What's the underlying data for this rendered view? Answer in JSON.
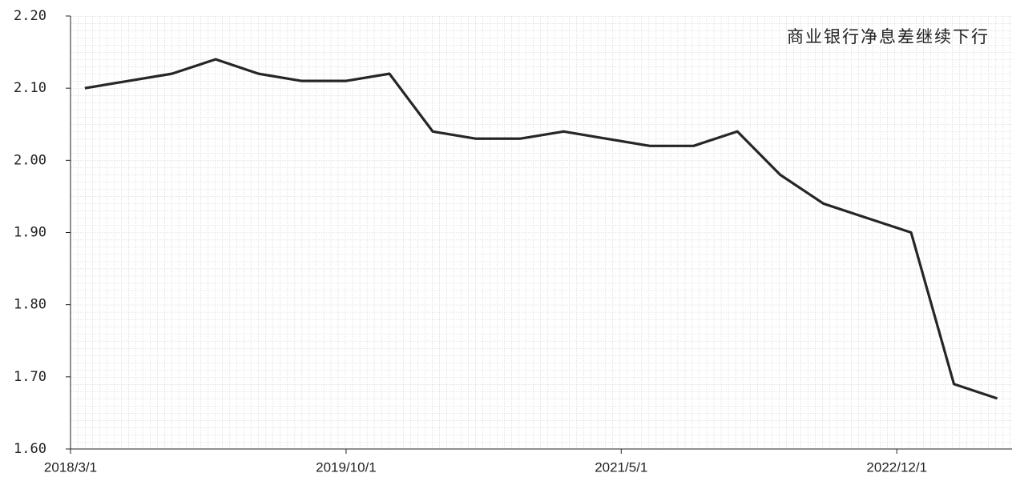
{
  "chart_data": {
    "type": "line",
    "title": "商业银行净息差继续下行",
    "x": [
      "2018/3/31",
      "2018/6/30",
      "2018/9/30",
      "2018/12/31",
      "2019/3/31",
      "2019/6/30",
      "2019/9/30",
      "2019/12/31",
      "2020/3/31",
      "2020/6/30",
      "2020/9/30",
      "2020/12/31",
      "2021/3/31",
      "2021/6/30",
      "2021/9/30",
      "2021/12/31",
      "2022/3/31",
      "2022/6/30",
      "2022/9/30",
      "2022/12/31",
      "2023/3/31",
      "2023/6/30"
    ],
    "series": [
      {
        "name": "净息差",
        "color": "#262626",
        "values": [
          2.1,
          2.11,
          2.12,
          2.14,
          2.12,
          2.11,
          2.11,
          2.12,
          2.04,
          2.03,
          2.03,
          2.04,
          2.03,
          2.02,
          2.02,
          2.04,
          1.98,
          1.94,
          1.92,
          1.9,
          1.69,
          1.67
        ]
      }
    ],
    "xlim": [
      "2018/3/1",
      "2023/7/31"
    ],
    "xticks": [
      "2018/3/1",
      "2019/10/1",
      "2021/5/1",
      "2022/12/1"
    ],
    "ylim": [
      1.6,
      2.2
    ],
    "yticks": [
      {
        "value": 1.6,
        "label": "1.60"
      },
      {
        "value": 1.7,
        "label": "1.70"
      },
      {
        "value": 1.8,
        "label": "1.80"
      },
      {
        "value": 1.9,
        "label": "1.90"
      },
      {
        "value": 2.0,
        "label": "2.00"
      },
      {
        "value": 2.1,
        "label": "2.10"
      },
      {
        "value": 2.2,
        "label": "2.20"
      }
    ]
  }
}
